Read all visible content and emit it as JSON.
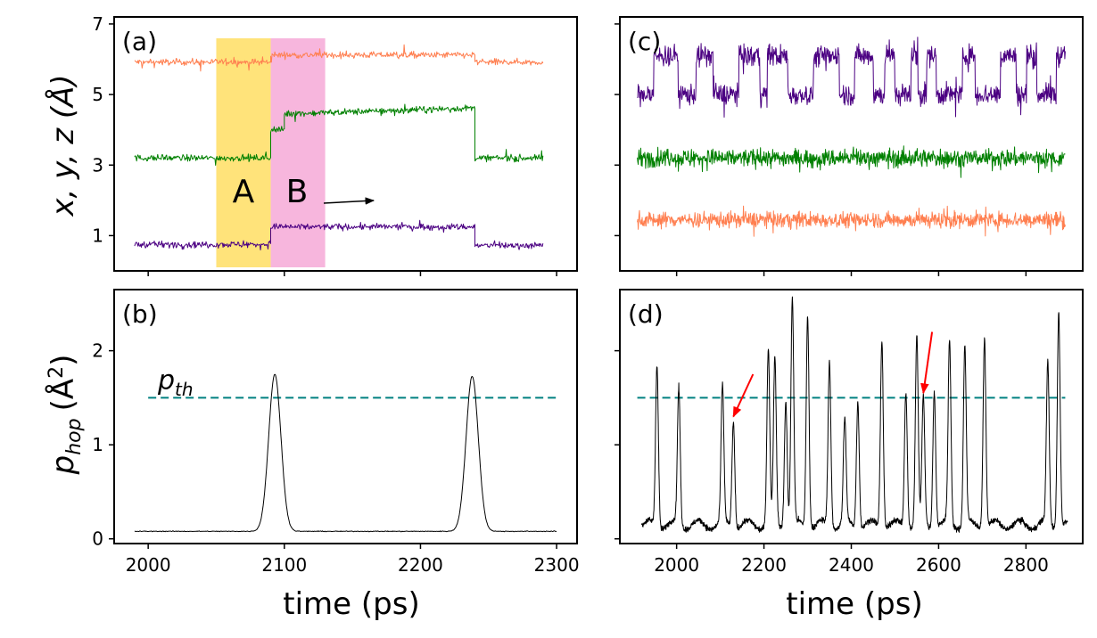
{
  "colors": {
    "x_trace": "#ff7f50",
    "y_trace": "#008000",
    "z_trace": "#4b0082",
    "phop_trace": "#000000",
    "threshold": "#008080",
    "region_A": "#ffe37a",
    "region_B": "#f7b6dd",
    "arrow_red": "#ff0000",
    "arrow_black": "#000000"
  },
  "figure": {
    "ylabel_top": "x, y, z (Å)",
    "ylabel_bottom_main": "p",
    "ylabel_bottom_sub": "hop",
    "ylabel_bottom_unit": "(Å",
    "ylabel_bottom_sup": "2",
    "ylabel_bottom_close": ")",
    "xlabel_left": "time (ps)",
    "xlabel_right": "time (ps)",
    "threshold_label_main": "p",
    "threshold_label_sub": "th",
    "region_labels": [
      "A",
      "B"
    ],
    "panel_labels": [
      "(a)",
      "(b)",
      "(c)",
      "(d)"
    ]
  },
  "chart_data": [
    {
      "panel": "(a)",
      "type": "line",
      "xlim": [
        1975,
        2315
      ],
      "ylim": [
        0,
        7.2
      ],
      "y_ticks": [
        "1",
        "3",
        "5",
        "7"
      ],
      "x_ticks": [
        2000,
        2100,
        2200,
        2300
      ],
      "shaded_regions": [
        {
          "label": "A",
          "x": [
            2050,
            2090
          ]
        },
        {
          "label": "B",
          "x": [
            2090,
            2130
          ]
        }
      ],
      "series": [
        {
          "color": "orange",
          "noise": 0.09,
          "segments": [
            [
              1990,
              2090,
              5.92
            ],
            [
              2090,
              2240,
              6.12
            ],
            [
              2240,
              2290,
              5.92
            ]
          ]
        },
        {
          "color": "green",
          "noise": 0.09,
          "segments": [
            [
              1990,
              2090,
              3.2
            ],
            [
              2090,
              2100,
              4.0
            ],
            [
              2100,
              2240,
              4.45
            ],
            [
              2240,
              2290,
              3.2
            ]
          ]
        },
        {
          "color": "indigo",
          "noise": 0.09,
          "segments": [
            [
              1990,
              2090,
              0.75
            ],
            [
              2090,
              2240,
              1.25
            ],
            [
              2240,
              2290,
              0.72
            ]
          ]
        }
      ]
    },
    {
      "panel": "(b)",
      "type": "line",
      "xlim": [
        1975,
        2315
      ],
      "ylim": [
        -0.05,
        2.65
      ],
      "y_ticks": [
        "0",
        "1",
        "2"
      ],
      "x_ticks": [
        "2000",
        "2100",
        "2200",
        "2300"
      ],
      "threshold": 1.5,
      "threshold_x": [
        2000,
        2300
      ],
      "baseline": 0.08,
      "peaks": [
        {
          "x": 2093,
          "y": 1.75,
          "w": 4.5
        },
        {
          "x": 2238,
          "y": 1.73,
          "w": 4.5
        }
      ],
      "x_range": [
        1990,
        2300
      ]
    },
    {
      "panel": "(c)",
      "type": "line",
      "xlim": [
        1870,
        2930
      ],
      "ylim": [
        0,
        7.2
      ],
      "x_ticks": [
        2000,
        2200,
        2400,
        2600,
        2800
      ],
      "series": [
        {
          "color": "indigo",
          "noise": 0.3,
          "switching": true,
          "low": 5.0,
          "high": 6.1
        },
        {
          "color": "green",
          "noise": 0.25,
          "base": 3.2
        },
        {
          "color": "orange",
          "noise": 0.22,
          "base": 1.45
        }
      ],
      "x_range": [
        1910,
        2890
      ]
    },
    {
      "panel": "(d)",
      "type": "line",
      "xlim": [
        1870,
        2930
      ],
      "ylim": [
        -0.05,
        2.65
      ],
      "x_ticks": [
        "2000",
        "2200",
        "2400",
        "2600",
        "2800"
      ],
      "threshold": 1.5,
      "threshold_x": [
        1910,
        2890
      ],
      "baseline": 0.15,
      "x_range": [
        1920,
        2895
      ],
      "peaks": [
        {
          "x": 1955,
          "y": 1.87
        },
        {
          "x": 2005,
          "y": 1.6
        },
        {
          "x": 2105,
          "y": 1.6
        },
        {
          "x": 2130,
          "y": 1.28
        },
        {
          "x": 2210,
          "y": 2.0
        },
        {
          "x": 2225,
          "y": 1.9
        },
        {
          "x": 2250,
          "y": 1.5
        },
        {
          "x": 2265,
          "y": 2.55
        },
        {
          "x": 2300,
          "y": 2.4
        },
        {
          "x": 2350,
          "y": 1.9
        },
        {
          "x": 2385,
          "y": 1.25
        },
        {
          "x": 2415,
          "y": 1.5
        },
        {
          "x": 2470,
          "y": 2.15
        },
        {
          "x": 2525,
          "y": 1.6
        },
        {
          "x": 2550,
          "y": 2.15
        },
        {
          "x": 2565,
          "y": 1.5
        },
        {
          "x": 2590,
          "y": 1.6
        },
        {
          "x": 2625,
          "y": 2.1
        },
        {
          "x": 2660,
          "y": 2.05
        },
        {
          "x": 2705,
          "y": 2.17
        },
        {
          "x": 2850,
          "y": 1.87
        },
        {
          "x": 2875,
          "y": 2.45
        }
      ],
      "annotations": [
        {
          "type": "red-arrow",
          "from": [
            2175,
            1.75
          ],
          "to": [
            2130,
            1.3
          ]
        },
        {
          "type": "red-arrow",
          "from": [
            2585,
            2.2
          ],
          "to": [
            2565,
            1.55
          ]
        }
      ]
    }
  ]
}
